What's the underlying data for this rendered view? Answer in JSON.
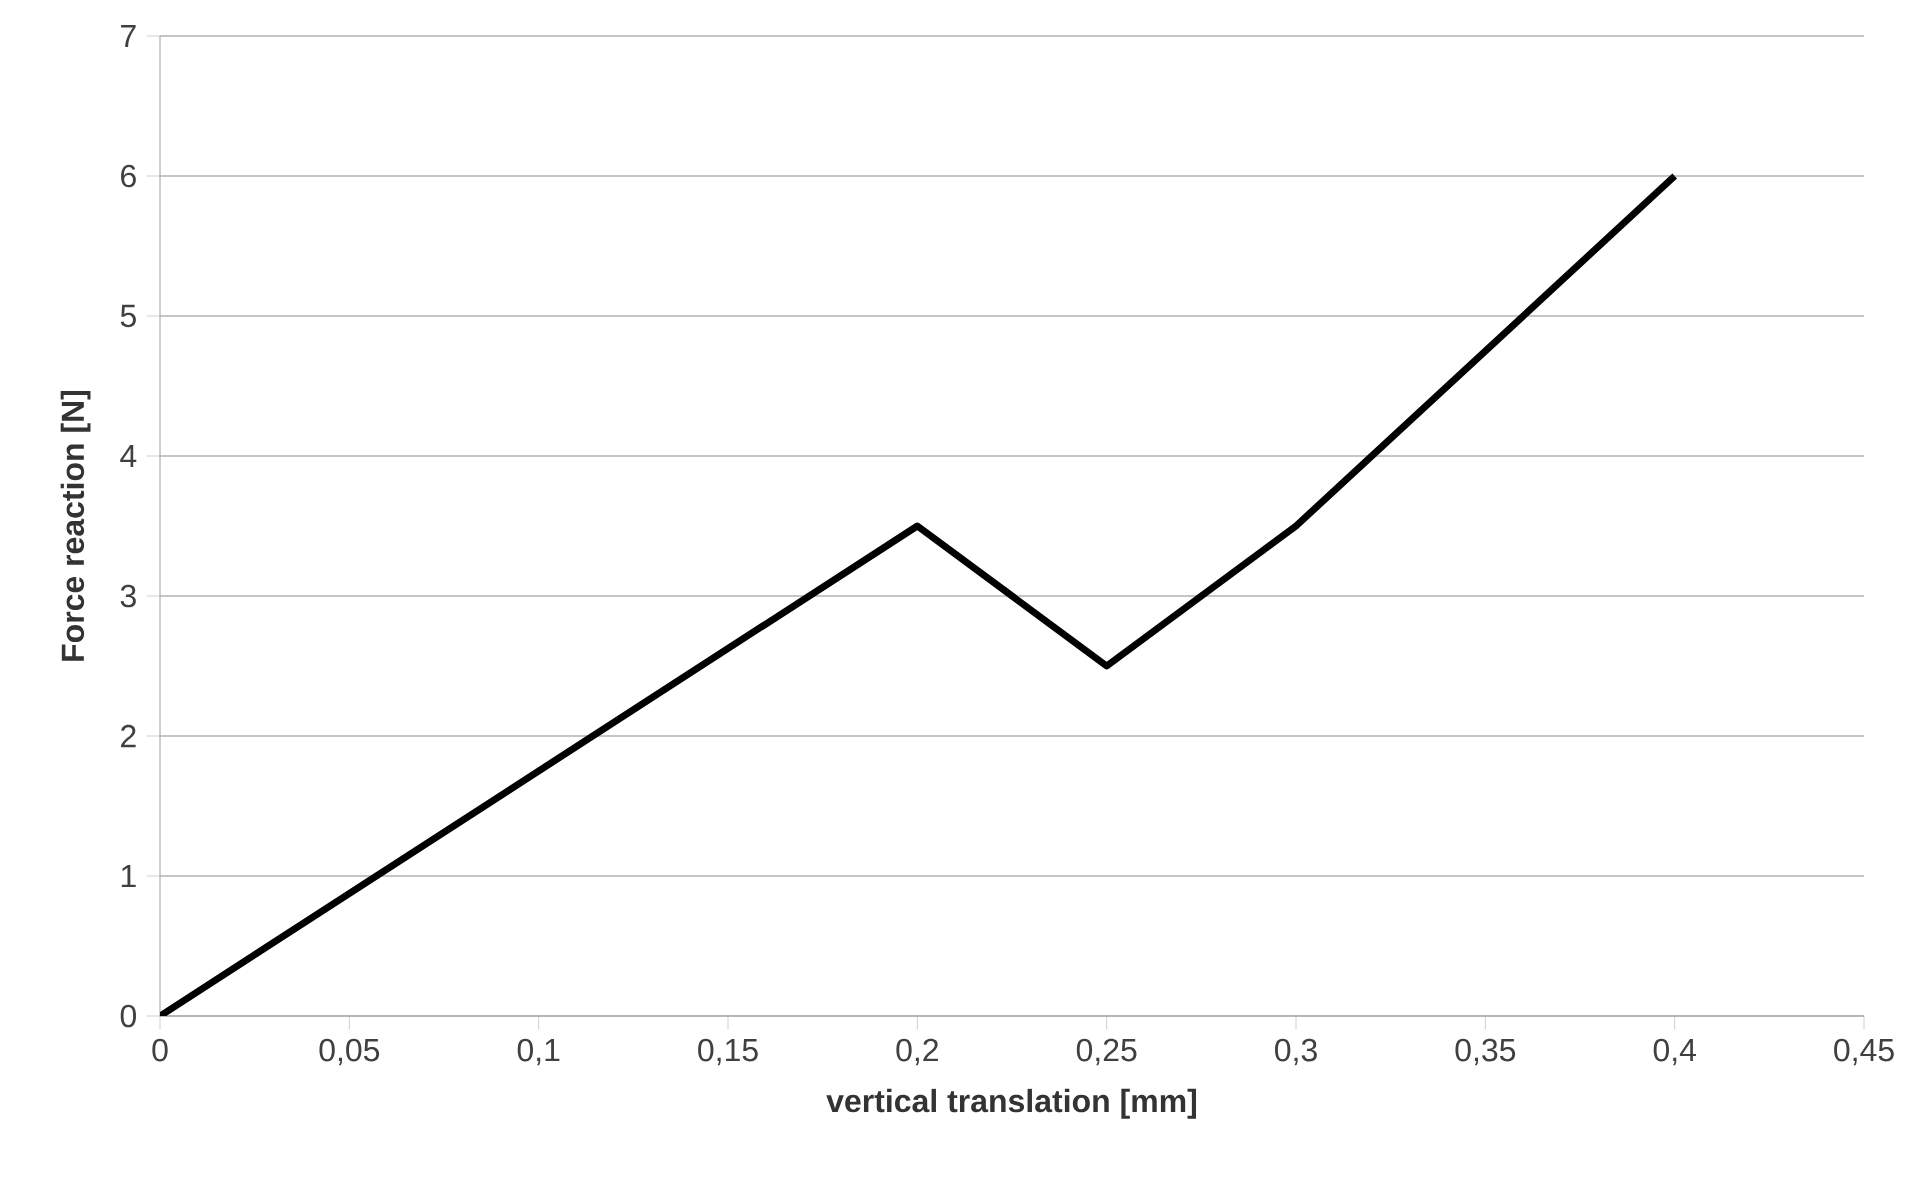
{
  "chart_data": {
    "type": "line",
    "xlabel": "vertical translation [mm]",
    "ylabel": "Force reaction [N]",
    "x": [
      0,
      0.2,
      0.25,
      0.3,
      0.4
    ],
    "series": [
      {
        "color": "#000000",
        "values": [
          0,
          3.5,
          2.5,
          3.5,
          6
        ]
      }
    ],
    "xlim": [
      0,
      0.45
    ],
    "xticks": [
      0,
      {
        "value": 0.05,
        "label": "0,05"
      },
      {
        "value": 0.1,
        "label": "0,1"
      },
      {
        "value": 0.15,
        "label": "0,15"
      },
      {
        "value": 0.2,
        "label": "0,2"
      },
      {
        "value": 0.25,
        "label": "0,25"
      },
      {
        "value": 0.3,
        "label": "0,3"
      },
      {
        "value": 0.35,
        "label": "0,35"
      },
      {
        "value": 0.4,
        "label": "0,4"
      },
      {
        "value": 0.45,
        "label": "0,45"
      }
    ],
    "ylim": [
      0,
      7
    ],
    "yticks": [
      0,
      1,
      2,
      3,
      4,
      5,
      6,
      7
    ],
    "grid": "y",
    "marker": "none",
    "line_style": "solid"
  }
}
